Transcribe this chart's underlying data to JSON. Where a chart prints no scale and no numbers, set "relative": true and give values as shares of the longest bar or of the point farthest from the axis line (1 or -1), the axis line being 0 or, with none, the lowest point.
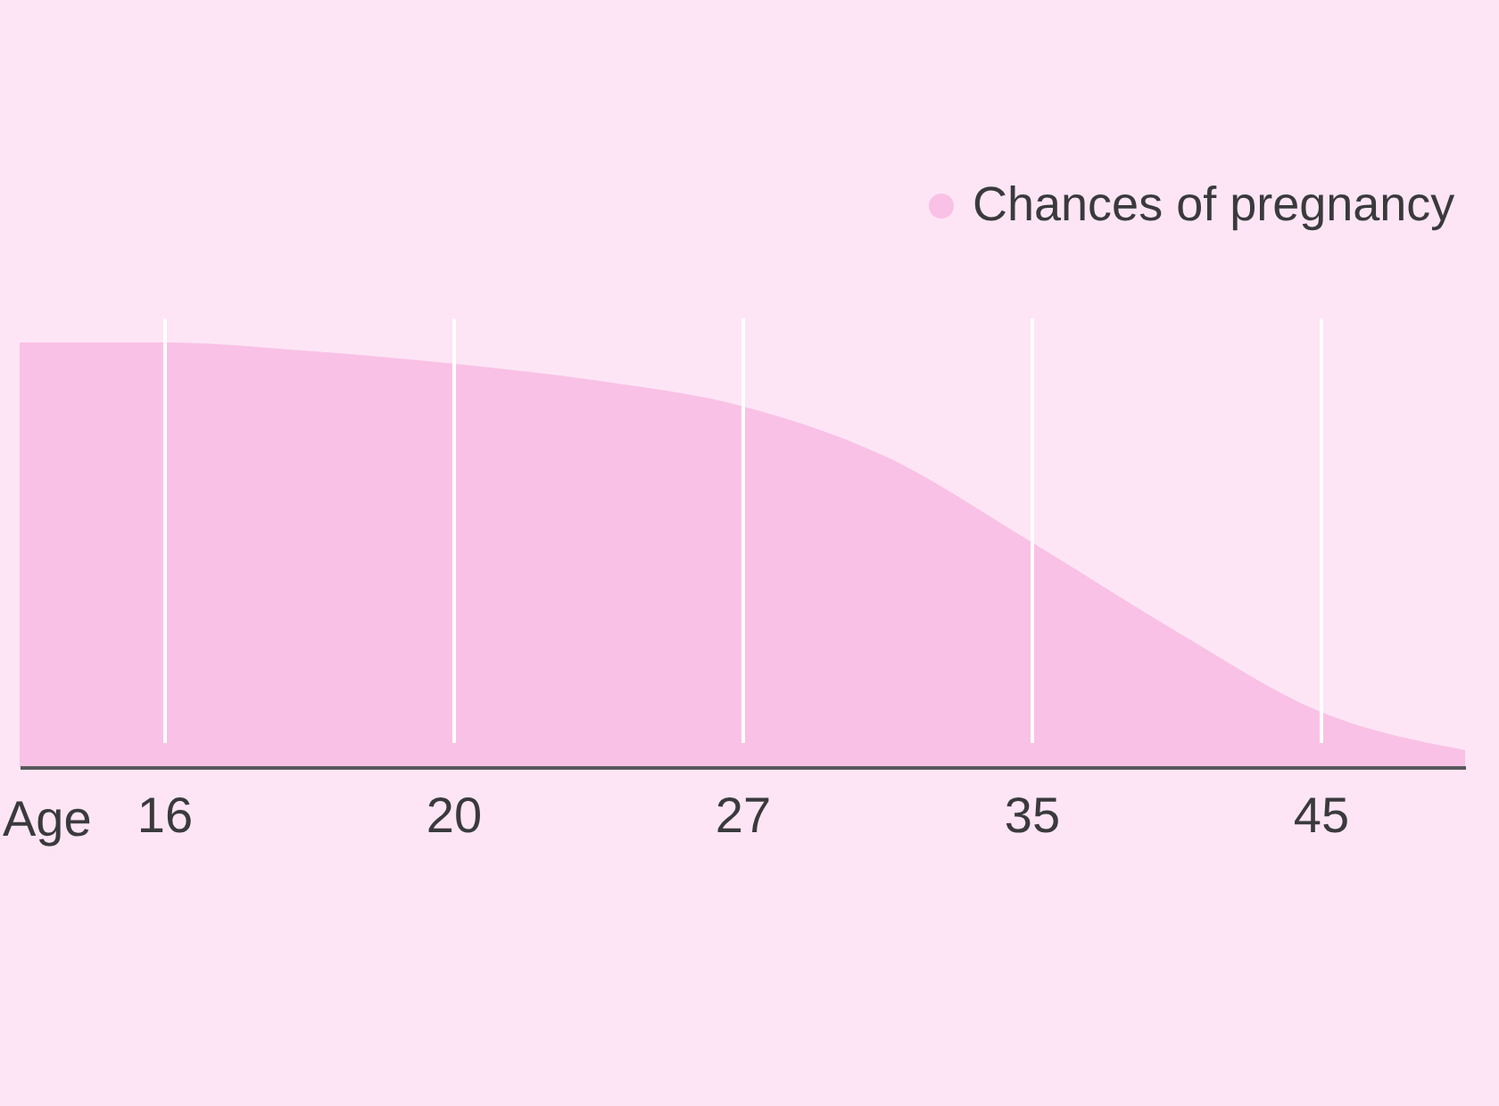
{
  "chart_data": {
    "type": "area",
    "relative": true,
    "xlabel": "Age",
    "categories": [
      null,
      "16",
      null,
      "20",
      null,
      "27",
      null,
      "35",
      null,
      "45",
      null
    ],
    "series": [
      {
        "name": "Chances of pregnancy",
        "color": "#f9c1e5",
        "values": [
          1.0,
          1.0,
          0.98,
          0.95,
          0.91,
          0.85,
          0.73,
          0.53,
          0.32,
          0.13,
          0.04
        ]
      }
    ],
    "grid": "x",
    "legend": "top right"
  }
}
